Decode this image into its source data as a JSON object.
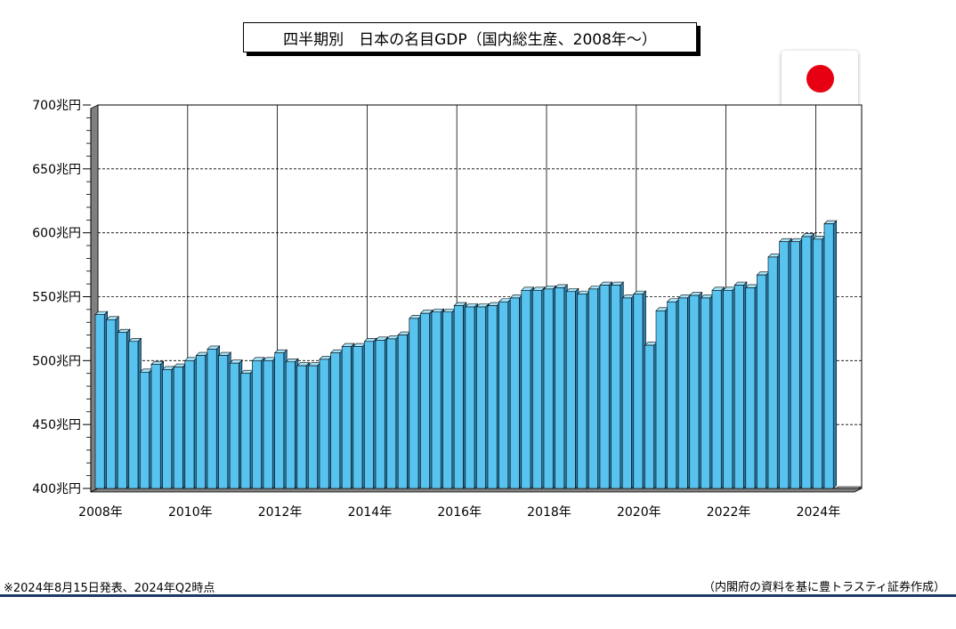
{
  "title": "四半期別　日本の名目GDP（国内総生産、2008年～）",
  "flag_icon": "japan-flag-icon",
  "footnote": "※2024年8月15日発表、2024年Q2時点",
  "source": "（内閣府の資料を基に豊トラスティ証券作成）",
  "colors": {
    "bar_front": "#59c3ef",
    "bar_top": "#a6e2f8",
    "bar_side": "#2b7fae",
    "accent_line": "#1f3864",
    "flag_red": "#e60012"
  },
  "chart_data": {
    "type": "bar",
    "title": "四半期別　日本の名目GDP（国内総生産、2008年～）",
    "xlabel": "",
    "ylabel": "",
    "ylim": [
      400,
      700
    ],
    "y_ticks": [
      400,
      450,
      500,
      550,
      600,
      650,
      700
    ],
    "y_tick_labels": [
      "400兆円",
      "450兆円",
      "500兆円",
      "550兆円",
      "600兆円",
      "650兆円",
      "700兆円"
    ],
    "x_tick_labels": [
      "2008年",
      "2010年",
      "2012年",
      "2014年",
      "2016年",
      "2018年",
      "2020年",
      "2022年",
      "2024年"
    ],
    "grid": true,
    "categories": [
      "2008Q1",
      "2008Q2",
      "2008Q3",
      "2008Q4",
      "2009Q1",
      "2009Q2",
      "2009Q3",
      "2009Q4",
      "2010Q1",
      "2010Q2",
      "2010Q3",
      "2010Q4",
      "2011Q1",
      "2011Q2",
      "2011Q3",
      "2011Q4",
      "2012Q1",
      "2012Q2",
      "2012Q3",
      "2012Q4",
      "2013Q1",
      "2013Q2",
      "2013Q3",
      "2013Q4",
      "2014Q1",
      "2014Q2",
      "2014Q3",
      "2014Q4",
      "2015Q1",
      "2015Q2",
      "2015Q3",
      "2015Q4",
      "2016Q1",
      "2016Q2",
      "2016Q3",
      "2016Q4",
      "2017Q1",
      "2017Q2",
      "2017Q3",
      "2017Q4",
      "2018Q1",
      "2018Q2",
      "2018Q3",
      "2018Q4",
      "2019Q1",
      "2019Q2",
      "2019Q3",
      "2019Q4",
      "2020Q1",
      "2020Q2",
      "2020Q3",
      "2020Q4",
      "2021Q1",
      "2021Q2",
      "2021Q3",
      "2021Q4",
      "2022Q1",
      "2022Q2",
      "2022Q3",
      "2022Q4",
      "2023Q1",
      "2023Q2",
      "2023Q3",
      "2023Q4",
      "2024Q1",
      "2024Q2"
    ],
    "values": [
      536,
      532,
      522,
      515,
      491,
      497,
      493,
      495,
      500,
      504,
      509,
      504,
      498,
      490,
      500,
      500,
      506,
      499,
      496,
      496,
      501,
      506,
      511,
      511,
      515,
      516,
      517,
      520,
      533,
      537,
      538,
      538,
      543,
      542,
      542,
      543,
      546,
      549,
      555,
      555,
      556,
      557,
      554,
      552,
      556,
      559,
      559,
      549,
      552,
      512,
      539,
      546,
      549,
      551,
      549,
      555,
      555,
      559,
      557,
      567,
      581,
      593,
      593,
      597,
      595,
      607
    ]
  }
}
